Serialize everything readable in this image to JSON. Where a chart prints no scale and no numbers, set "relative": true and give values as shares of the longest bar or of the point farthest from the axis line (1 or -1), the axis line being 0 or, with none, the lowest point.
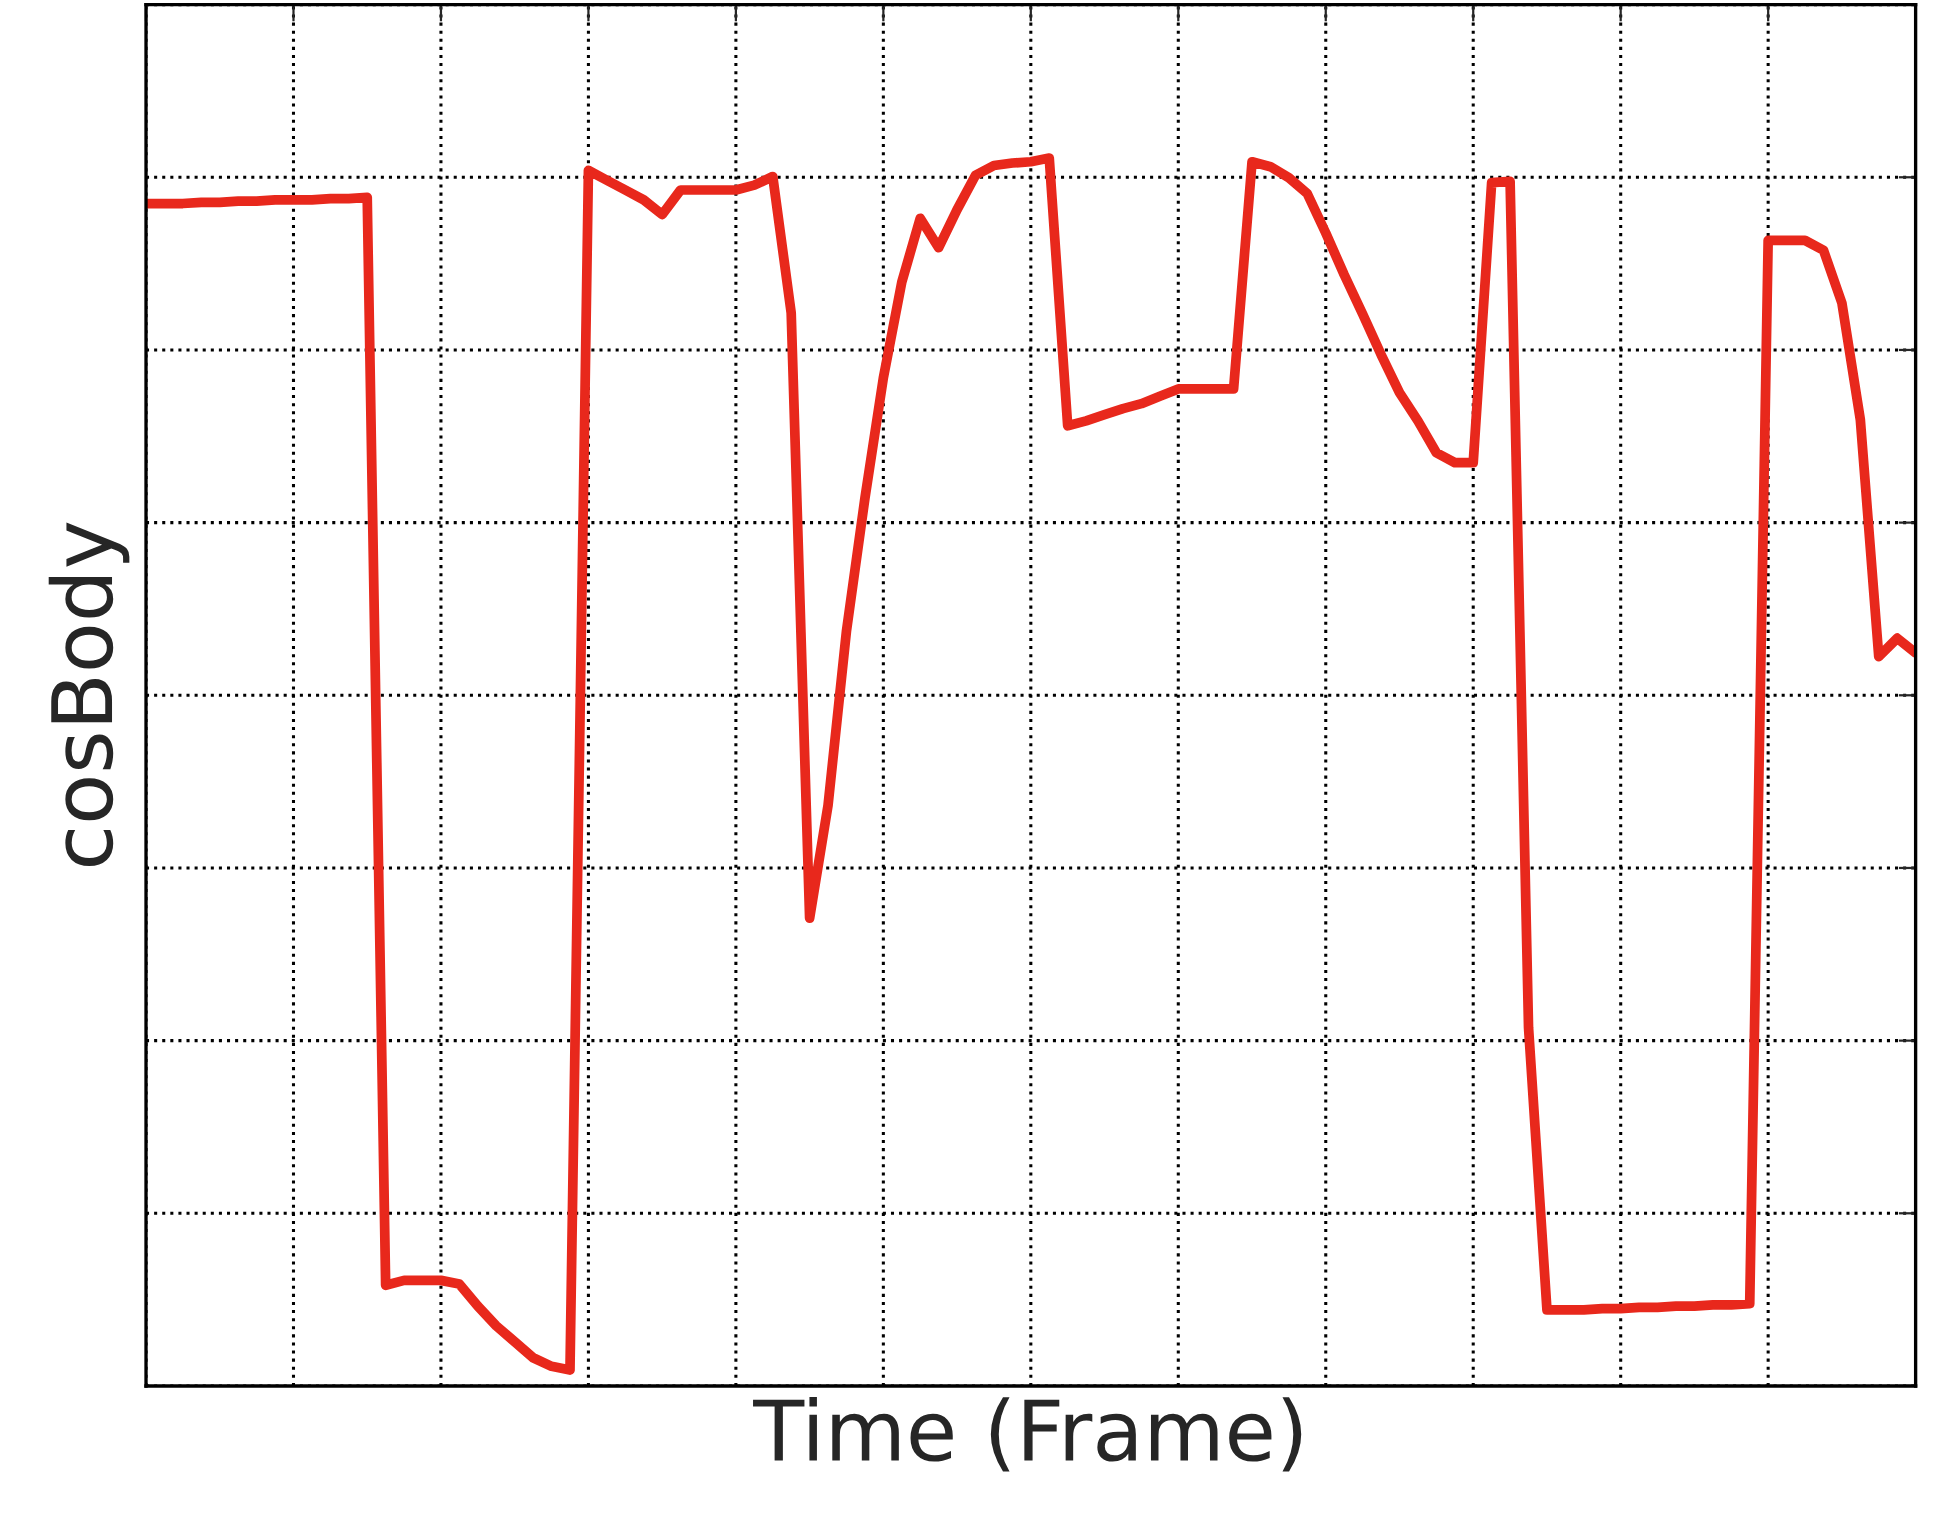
{
  "chart_data": {
    "type": "line",
    "xlabel": "Time (Frame)",
    "ylabel": "cosBody",
    "relative": true,
    "grid": true,
    "categories": [
      null,
      null,
      null,
      null,
      null,
      null,
      null,
      null,
      null,
      null,
      null,
      null,
      null,
      null,
      null,
      null,
      null,
      null,
      null,
      null,
      null,
      null,
      null,
      null,
      null,
      null,
      null,
      null,
      null,
      null,
      null,
      null,
      null,
      null,
      null,
      null,
      null,
      null,
      null,
      null,
      null,
      null,
      null,
      null,
      null,
      null,
      null,
      null,
      null,
      null,
      null,
      null,
      null,
      null,
      null,
      null,
      null,
      null,
      null,
      null,
      null,
      null,
      null,
      null,
      null,
      null,
      null,
      null,
      null,
      null,
      null,
      null,
      null,
      null,
      null,
      null,
      null,
      null,
      null,
      null,
      null,
      null,
      null,
      null,
      null,
      null,
      null,
      null,
      null,
      null,
      null,
      null,
      null,
      null,
      null,
      null,
      null
    ],
    "series": [
      {
        "color": "#e8281c",
        "values": [
          0.963,
          0.963,
          0.963,
          0.964,
          0.964,
          0.965,
          0.965,
          0.966,
          0.966,
          0.966,
          0.967,
          0.967,
          0.968,
          0.082,
          0.086,
          0.086,
          0.086,
          0.083,
          0.065,
          0.049,
          0.036,
          0.023,
          0.016,
          0.013,
          0.99,
          0.982,
          0.974,
          0.966,
          0.954,
          0.974,
          0.974,
          0.974,
          0.974,
          0.978,
          0.985,
          0.874,
          0.381,
          0.473,
          0.615,
          0.723,
          0.821,
          0.899,
          0.951,
          0.927,
          0.958,
          0.986,
          0.994,
          0.996,
          0.997,
          1.0,
          0.782,
          0.786,
          0.791,
          0.796,
          0.8,
          0.806,
          0.812,
          0.812,
          0.812,
          0.812,
          0.997,
          0.993,
          0.984,
          0.971,
          0.939,
          0.905,
          0.873,
          0.84,
          0.809,
          0.786,
          0.76,
          0.752,
          0.752,
          0.98,
          0.981,
          0.292,
          0.062,
          0.062,
          0.062,
          0.063,
          0.063,
          0.064,
          0.064,
          0.065,
          0.065,
          0.066,
          0.066,
          0.067,
          0.933,
          0.933,
          0.933,
          0.925,
          0.882,
          0.787,
          0.594,
          0.609,
          0.597
        ]
      }
    ]
  }
}
